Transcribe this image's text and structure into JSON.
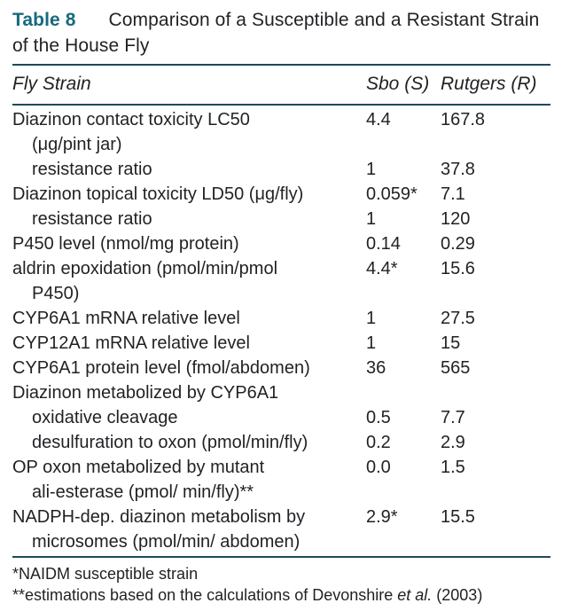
{
  "title": {
    "label": "Table 8",
    "caption": "Comparison of a Susceptible and a Resistant Strain of the House Fly"
  },
  "header": {
    "col1": "Fly Strain",
    "col2": "Sbo (S)",
    "col3": "Rutgers (R)"
  },
  "rows": [
    {
      "label": "Diazinon contact toxicity LC50",
      "indent": false,
      "s": "4.4",
      "r": "167.8"
    },
    {
      "label": "(μg/pint jar)",
      "indent": true,
      "s": "",
      "r": ""
    },
    {
      "label": "resistance ratio",
      "indent": true,
      "s": "1",
      "r": "37.8"
    },
    {
      "label": "Diazinon topical toxicity LD50 (μg/fly)",
      "indent": false,
      "s": "0.059*",
      "r": "7.1"
    },
    {
      "label": "resistance ratio",
      "indent": true,
      "s": "1",
      "r": "120"
    },
    {
      "label": "P450 level (nmol/mg protein)",
      "indent": false,
      "s": "0.14",
      "r": "0.29"
    },
    {
      "label": "aldrin epoxidation (pmol/min/pmol",
      "indent": false,
      "s": "4.4*",
      "r": "15.6"
    },
    {
      "label": "P450)",
      "indent": true,
      "s": "",
      "r": ""
    },
    {
      "label": "CYP6A1 mRNA relative level",
      "indent": false,
      "s": "1",
      "r": "27.5"
    },
    {
      "label": "CYP12A1 mRNA relative level",
      "indent": false,
      "s": "1",
      "r": "15"
    },
    {
      "label": "CYP6A1 protein level (fmol/abdomen)",
      "indent": false,
      "s": "36",
      "r": "565"
    },
    {
      "label": "Diazinon metabolized by CYP6A1",
      "indent": false,
      "s": "",
      "r": ""
    },
    {
      "label": "oxidative cleavage",
      "indent": true,
      "s": "0.5",
      "r": "7.7"
    },
    {
      "label": "desulfuration to oxon (pmol/min/fly)",
      "indent": true,
      "s": "0.2",
      "r": "2.9"
    },
    {
      "label": "OP oxon metabolized by mutant",
      "indent": false,
      "s": "0.0",
      "r": "1.5"
    },
    {
      "label": "ali-esterase (pmol/ min/fly)**",
      "indent": true,
      "s": "",
      "r": ""
    },
    {
      "label": "NADPH-dep. diazinon metabolism by",
      "indent": false,
      "s": "2.9*",
      "r": "15.5"
    },
    {
      "label": "microsomes (pmol/min/ abdomen)",
      "indent": true,
      "s": "",
      "r": ""
    }
  ],
  "footnote1": "*NAIDM susceptible strain",
  "footnote2": {
    "prefix": "**estimations based on the calculations of Devonshire ",
    "italic": "et al.",
    "suffix": " (2003)"
  },
  "colors": {
    "accent": "#17697e",
    "rule": "#1d4a59",
    "text": "#1f2124"
  },
  "chart_data": {
    "type": "table",
    "columns": [
      "Fly Strain",
      "Sbo (S)",
      "Rutgers (R)"
    ],
    "rows": [
      [
        "Diazinon contact toxicity LC50 (μg/pint jar)",
        "4.4",
        "167.8"
      ],
      [
        "resistance ratio",
        "1",
        "37.8"
      ],
      [
        "Diazinon topical toxicity LD50 (μg/fly)",
        "0.059*",
        "7.1"
      ],
      [
        "resistance ratio",
        "1",
        "120"
      ],
      [
        "P450 level (nmol/mg protein)",
        "0.14",
        "0.29"
      ],
      [
        "aldrin epoxidation (pmol/min/pmol P450)",
        "4.4*",
        "15.6"
      ],
      [
        "CYP6A1 mRNA relative level",
        "1",
        "27.5"
      ],
      [
        "CYP12A1 mRNA relative level",
        "1",
        "15"
      ],
      [
        "CYP6A1 protein level (fmol/abdomen)",
        "36",
        "565"
      ],
      [
        "Diazinon metabolized by CYP6A1",
        "",
        ""
      ],
      [
        "oxidative cleavage",
        "0.5",
        "7.7"
      ],
      [
        "desulfuration to oxon (pmol/min/fly)",
        "0.2",
        "2.9"
      ],
      [
        "OP oxon metabolized by mutant ali-esterase (pmol/ min/fly)**",
        "0.0",
        "1.5"
      ],
      [
        "NADPH-dep. diazinon metabolism by microsomes (pmol/min/ abdomen)",
        "2.9*",
        "15.5"
      ]
    ]
  }
}
